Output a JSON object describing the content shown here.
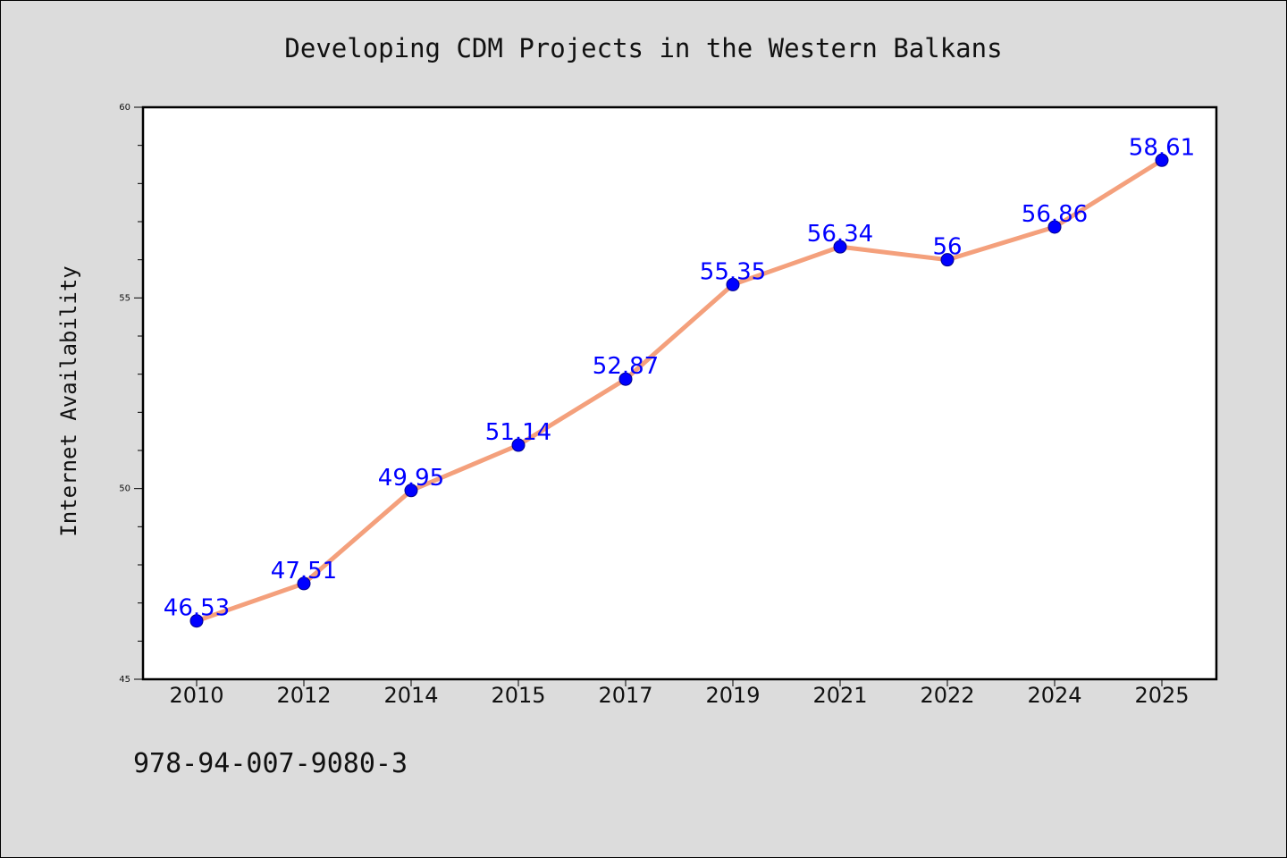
{
  "chart_data": {
    "type": "line",
    "title": "Developing CDM Projects in the Western Balkans",
    "xlabel": "",
    "ylabel": "Internet Availability",
    "categories": [
      "2010",
      "2012",
      "2014",
      "2015",
      "2017",
      "2019",
      "2021",
      "2022",
      "2024",
      "2025"
    ],
    "values": [
      46.53,
      47.51,
      49.95,
      51.14,
      52.87,
      55.35,
      56.34,
      56,
      56.86,
      58.61
    ],
    "data_labels": [
      "46.53",
      "47.51",
      "49.95",
      "51.14",
      "52.87",
      "55.35",
      "56.34",
      "56",
      "56.86",
      "58.61"
    ],
    "ylim": [
      45,
      60
    ],
    "yticks": [
      "45",
      "50",
      "55",
      "60"
    ],
    "grid": false,
    "line_color": "#f4a07c",
    "marker_color": "#0000ff",
    "label_color": "#0000ff",
    "plot_background": "#ffffff",
    "figure_background": "#dcdcdc"
  },
  "footnote": "978-94-007-9080-3"
}
